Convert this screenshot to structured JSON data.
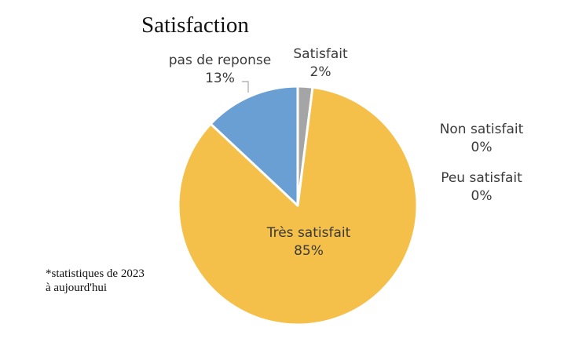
{
  "chart_data": {
    "type": "pie",
    "title": "Satisfaction",
    "categories": [
      "Satisfait",
      "Très satisfait",
      "pas de reponse",
      "Non satisfait",
      "Peu satisfait"
    ],
    "values": [
      2,
      85,
      13,
      0,
      0
    ],
    "value_labels": [
      "2%",
      "85%",
      "13%",
      "0%",
      "0%"
    ],
    "colors": [
      "#a5a5a5",
      "#f4c04a",
      "#6a9fd4",
      "#d9d9d9",
      "#d9d9d9"
    ],
    "legend": "none",
    "data_labels": "category and percentage"
  },
  "footnote": {
    "line1": "*statistiques de 2023",
    "line2": "à aujourd'hui"
  }
}
